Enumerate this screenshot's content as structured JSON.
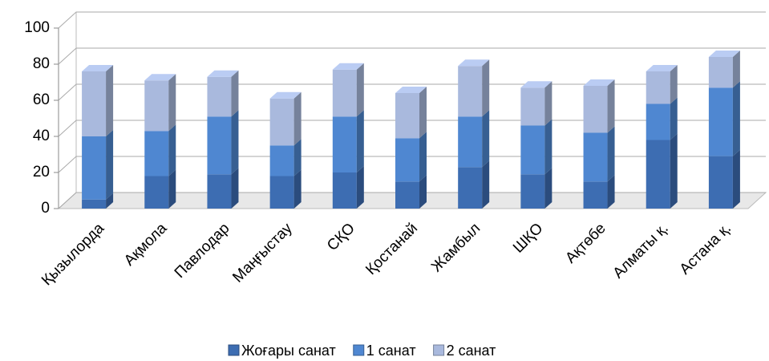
{
  "chart_data": {
    "type": "bar3d_stacked",
    "categories": [
      "Қызылорда",
      "Ақмола",
      "Павлодар",
      "Маңғыстау",
      "СҚО",
      "Қостанай",
      "Жамбыл",
      "ШҚО",
      "Ақтөбе",
      "Алматы қ.",
      "Астана қ."
    ],
    "series": [
      {
        "name": "Жоғары санат",
        "color": "#3d6db2",
        "values": [
          5,
          18,
          19,
          18,
          20,
          15,
          23,
          19,
          15,
          38,
          29
        ]
      },
      {
        "name": "1 санат",
        "color": "#4f87d1",
        "values": [
          35,
          25,
          32,
          17,
          31,
          24,
          28,
          27,
          27,
          20,
          38
        ]
      },
      {
        "name": "2 санат",
        "color": "#a9b9dd",
        "values": [
          36,
          28,
          22,
          26,
          26,
          25,
          28,
          21,
          26,
          18,
          17
        ]
      }
    ],
    "ylim": [
      0,
      100
    ],
    "yticks": [
      0,
      20,
      40,
      60,
      80,
      100
    ],
    "grid": true
  }
}
